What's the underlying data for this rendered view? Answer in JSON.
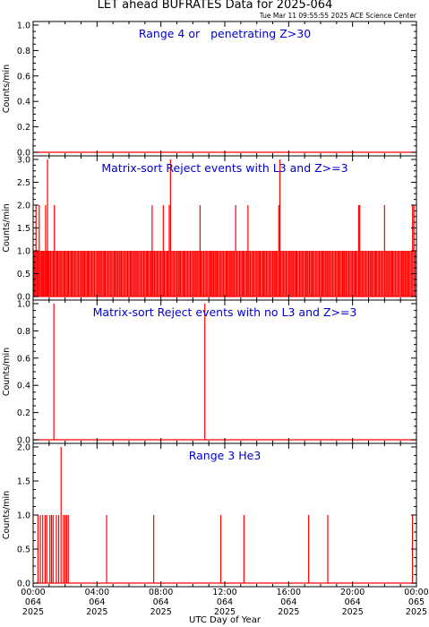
{
  "figure": {
    "title": "LET ahead BUFRATES Data for 2025-064",
    "timestamp": "Tue Mar 11 09:55:55 2025 ACE Science Center",
    "xlabel": "UTC Day of Year",
    "x_ticks": [
      {
        "hour": 0,
        "time": "00:00",
        "doy": "064",
        "year": "2025"
      },
      {
        "hour": 4,
        "time": "04:00",
        "doy": "064",
        "year": "2025"
      },
      {
        "hour": 8,
        "time": "08:00",
        "doy": "064",
        "year": "2025"
      },
      {
        "hour": 12,
        "time": "12:00",
        "doy": "064",
        "year": "2025"
      },
      {
        "hour": 16,
        "time": "16:00",
        "doy": "064",
        "year": "2025"
      },
      {
        "hour": 20,
        "time": "20:00",
        "doy": "064",
        "year": "2025"
      },
      {
        "hour": 24,
        "time": "00:00",
        "doy": "065",
        "year": "2025"
      }
    ],
    "colors": {
      "data": "#ff0000",
      "panel_label": "#0000cc",
      "axes": "#000000"
    }
  },
  "chart_data": [
    {
      "type": "line",
      "title": "Range 4 or   penetrating Z>30",
      "ylabel": "Counts/min",
      "ylim": [
        0,
        1.0
      ],
      "y_ticks": [
        "0.0",
        "0.2",
        "0.4",
        "0.6",
        "0.8",
        "1.0"
      ],
      "xlim_hours": [
        0,
        24
      ],
      "values_default": 0,
      "events": []
    },
    {
      "type": "line",
      "title": "Matrix-sort Reject events with L3 and Z>=3",
      "ylabel": "Counts/min",
      "ylim": [
        0,
        3.0
      ],
      "y_ticks": [
        "0.0",
        "0.5",
        "1.0",
        "1.5",
        "2.0",
        "2.5",
        "3.0"
      ],
      "xlim_hours": [
        0,
        24
      ],
      "values_default": 0,
      "events": [
        [
          0.05,
          1
        ],
        [
          0.12,
          1
        ],
        [
          0.18,
          2
        ],
        [
          0.25,
          1
        ],
        [
          0.32,
          1
        ],
        [
          0.38,
          2
        ],
        [
          0.45,
          1
        ],
        [
          0.52,
          1
        ],
        [
          0.58,
          1
        ],
        [
          0.65,
          1
        ],
        [
          0.72,
          1
        ],
        [
          0.78,
          2
        ],
        [
          0.85,
          1
        ],
        [
          0.9,
          3
        ],
        [
          0.96,
          1
        ],
        [
          1.02,
          1
        ],
        [
          1.1,
          1
        ],
        [
          1.18,
          1
        ],
        [
          1.26,
          1
        ],
        [
          1.33,
          2
        ],
        [
          1.4,
          1
        ],
        [
          1.48,
          1
        ],
        [
          1.55,
          1
        ],
        [
          1.63,
          1
        ],
        [
          1.7,
          1
        ],
        [
          1.78,
          1
        ],
        [
          1.85,
          1
        ],
        [
          1.93,
          1
        ],
        [
          2.0,
          1
        ],
        [
          2.08,
          1
        ],
        [
          2.15,
          1
        ],
        [
          2.22,
          1
        ],
        [
          2.3,
          1
        ],
        [
          2.38,
          1
        ],
        [
          2.45,
          1
        ],
        [
          2.52,
          1
        ],
        [
          2.6,
          1
        ],
        [
          2.68,
          1
        ],
        [
          2.76,
          1
        ],
        [
          2.84,
          1
        ],
        [
          2.92,
          1
        ],
        [
          3.0,
          1
        ],
        [
          3.08,
          1
        ],
        [
          3.15,
          1
        ],
        [
          3.22,
          1
        ],
        [
          3.3,
          1
        ],
        [
          3.38,
          1
        ],
        [
          3.45,
          1
        ],
        [
          3.52,
          1
        ],
        [
          3.6,
          1
        ],
        [
          3.68,
          1
        ],
        [
          3.76,
          1
        ],
        [
          3.84,
          1
        ],
        [
          3.92,
          1
        ],
        [
          4.0,
          1
        ],
        [
          4.08,
          1
        ],
        [
          4.15,
          1
        ],
        [
          4.22,
          1
        ],
        [
          4.3,
          1
        ],
        [
          4.38,
          1
        ],
        [
          4.45,
          1
        ],
        [
          4.52,
          1
        ],
        [
          4.6,
          1
        ],
        [
          4.68,
          1
        ],
        [
          4.76,
          1
        ],
        [
          4.84,
          1
        ],
        [
          4.92,
          1
        ],
        [
          5.0,
          1
        ],
        [
          5.08,
          1
        ],
        [
          5.15,
          1
        ],
        [
          5.22,
          1
        ],
        [
          5.3,
          1
        ],
        [
          5.38,
          1
        ],
        [
          5.45,
          1
        ],
        [
          5.52,
          1
        ],
        [
          5.6,
          1
        ],
        [
          5.68,
          1
        ],
        [
          5.76,
          1
        ],
        [
          5.84,
          1
        ],
        [
          5.92,
          1
        ],
        [
          6.0,
          1
        ],
        [
          6.08,
          1
        ],
        [
          6.15,
          1
        ],
        [
          6.22,
          1
        ],
        [
          6.3,
          1
        ],
        [
          6.38,
          1
        ],
        [
          6.45,
          1
        ],
        [
          6.52,
          1
        ],
        [
          6.6,
          1
        ],
        [
          6.68,
          1
        ],
        [
          6.76,
          1
        ],
        [
          6.84,
          1
        ],
        [
          6.92,
          1
        ],
        [
          7.0,
          1
        ],
        [
          7.08,
          1
        ],
        [
          7.15,
          1
        ],
        [
          7.22,
          1
        ],
        [
          7.3,
          1
        ],
        [
          7.38,
          1
        ],
        [
          7.45,
          2
        ],
        [
          7.52,
          1
        ],
        [
          7.6,
          1
        ],
        [
          7.68,
          1
        ],
        [
          7.76,
          1
        ],
        [
          7.84,
          1
        ],
        [
          7.92,
          1
        ],
        [
          8.0,
          1
        ],
        [
          8.08,
          1
        ],
        [
          8.15,
          2
        ],
        [
          8.22,
          1
        ],
        [
          8.3,
          1
        ],
        [
          8.38,
          1
        ],
        [
          8.45,
          1
        ],
        [
          8.52,
          2
        ],
        [
          8.6,
          3
        ],
        [
          8.68,
          1
        ],
        [
          8.76,
          1
        ],
        [
          8.84,
          1
        ],
        [
          8.92,
          1
        ],
        [
          9.0,
          1
        ],
        [
          9.08,
          1
        ],
        [
          9.15,
          1
        ],
        [
          9.22,
          1
        ],
        [
          9.3,
          1
        ],
        [
          9.38,
          1
        ],
        [
          9.45,
          1
        ],
        [
          9.52,
          1
        ],
        [
          9.6,
          1
        ],
        [
          9.68,
          1
        ],
        [
          9.76,
          1
        ],
        [
          9.84,
          1
        ],
        [
          9.92,
          1
        ],
        [
          10.0,
          1
        ],
        [
          10.08,
          1
        ],
        [
          10.15,
          1
        ],
        [
          10.22,
          1
        ],
        [
          10.3,
          1
        ],
        [
          10.38,
          1
        ],
        [
          10.45,
          2
        ],
        [
          10.52,
          1
        ],
        [
          10.6,
          1
        ],
        [
          10.68,
          1
        ],
        [
          10.76,
          1
        ],
        [
          10.84,
          1
        ],
        [
          10.92,
          1
        ],
        [
          11.0,
          1
        ],
        [
          11.08,
          1
        ],
        [
          11.15,
          1
        ],
        [
          11.22,
          1
        ],
        [
          11.3,
          1
        ],
        [
          11.38,
          1
        ],
        [
          11.45,
          1
        ],
        [
          11.52,
          1
        ],
        [
          11.6,
          1
        ],
        [
          11.68,
          1
        ],
        [
          11.76,
          1
        ],
        [
          11.84,
          1
        ],
        [
          11.92,
          1
        ],
        [
          12.0,
          1
        ],
        [
          12.08,
          1
        ],
        [
          12.15,
          1
        ],
        [
          12.22,
          1
        ],
        [
          12.3,
          1
        ],
        [
          12.38,
          1
        ],
        [
          12.45,
          1
        ],
        [
          12.52,
          1
        ],
        [
          12.6,
          1
        ],
        [
          12.68,
          2
        ],
        [
          12.76,
          1
        ],
        [
          12.84,
          1
        ],
        [
          12.92,
          1
        ],
        [
          13.0,
          1
        ],
        [
          13.08,
          1
        ],
        [
          13.15,
          1
        ],
        [
          13.22,
          1
        ],
        [
          13.3,
          1
        ],
        [
          13.38,
          1
        ],
        [
          13.45,
          2
        ],
        [
          13.52,
          1
        ],
        [
          13.6,
          1
        ],
        [
          13.68,
          1
        ],
        [
          13.76,
          1
        ],
        [
          13.84,
          1
        ],
        [
          13.92,
          1
        ],
        [
          14.0,
          1
        ],
        [
          14.08,
          1
        ],
        [
          14.15,
          1
        ],
        [
          14.22,
          1
        ],
        [
          14.3,
          1
        ],
        [
          14.38,
          1
        ],
        [
          14.45,
          1
        ],
        [
          14.52,
          1
        ],
        [
          14.6,
          1
        ],
        [
          14.68,
          1
        ],
        [
          14.76,
          1
        ],
        [
          14.84,
          1
        ],
        [
          14.92,
          1
        ],
        [
          15.0,
          1
        ],
        [
          15.08,
          1
        ],
        [
          15.15,
          1
        ],
        [
          15.22,
          1
        ],
        [
          15.3,
          1
        ],
        [
          15.38,
          2
        ],
        [
          15.45,
          3
        ],
        [
          15.52,
          1
        ],
        [
          15.6,
          1
        ],
        [
          15.68,
          1
        ],
        [
          15.76,
          1
        ],
        [
          15.84,
          1
        ],
        [
          15.92,
          1
        ],
        [
          16.0,
          1
        ],
        [
          16.08,
          1
        ],
        [
          16.15,
          1
        ],
        [
          16.22,
          1
        ],
        [
          16.3,
          1
        ],
        [
          16.38,
          1
        ],
        [
          16.45,
          1
        ],
        [
          16.52,
          1
        ],
        [
          16.6,
          1
        ],
        [
          16.68,
          1
        ],
        [
          16.76,
          1
        ],
        [
          16.84,
          1
        ],
        [
          16.92,
          1
        ],
        [
          17.0,
          1
        ],
        [
          17.08,
          1
        ],
        [
          17.15,
          1
        ],
        [
          17.22,
          1
        ],
        [
          17.3,
          1
        ],
        [
          17.38,
          1
        ],
        [
          17.45,
          1
        ],
        [
          17.52,
          1
        ],
        [
          17.6,
          1
        ],
        [
          17.68,
          1
        ],
        [
          17.76,
          1
        ],
        [
          17.84,
          1
        ],
        [
          17.92,
          1
        ],
        [
          18.0,
          1
        ],
        [
          18.08,
          1
        ],
        [
          18.15,
          1
        ],
        [
          18.22,
          1
        ],
        [
          18.3,
          1
        ],
        [
          18.38,
          1
        ],
        [
          18.45,
          1
        ],
        [
          18.52,
          1
        ],
        [
          18.6,
          1
        ],
        [
          18.68,
          1
        ],
        [
          18.76,
          1
        ],
        [
          18.84,
          1
        ],
        [
          18.92,
          1
        ],
        [
          19.0,
          1
        ],
        [
          19.08,
          1
        ],
        [
          19.15,
          1
        ],
        [
          19.22,
          1
        ],
        [
          19.3,
          1
        ],
        [
          19.38,
          1
        ],
        [
          19.45,
          1
        ],
        [
          19.52,
          1
        ],
        [
          19.6,
          1
        ],
        [
          19.68,
          1
        ],
        [
          19.76,
          1
        ],
        [
          19.84,
          1
        ],
        [
          19.92,
          1
        ],
        [
          20.0,
          1
        ],
        [
          20.08,
          1
        ],
        [
          20.15,
          1
        ],
        [
          20.22,
          1
        ],
        [
          20.3,
          1
        ],
        [
          20.38,
          2
        ],
        [
          20.45,
          2
        ],
        [
          20.52,
          1
        ],
        [
          20.6,
          1
        ],
        [
          20.68,
          1
        ],
        [
          20.76,
          1
        ],
        [
          20.84,
          1
        ],
        [
          20.92,
          1
        ],
        [
          21.0,
          1
        ],
        [
          21.08,
          1
        ],
        [
          21.15,
          1
        ],
        [
          21.22,
          1
        ],
        [
          21.3,
          1
        ],
        [
          21.38,
          1
        ],
        [
          21.45,
          1
        ],
        [
          21.52,
          1
        ],
        [
          21.6,
          1
        ],
        [
          21.68,
          1
        ],
        [
          21.76,
          1
        ],
        [
          21.84,
          1
        ],
        [
          21.92,
          1
        ],
        [
          22.0,
          2
        ],
        [
          22.08,
          1
        ],
        [
          22.15,
          1
        ],
        [
          22.22,
          1
        ],
        [
          22.3,
          1
        ],
        [
          22.38,
          1
        ],
        [
          22.45,
          1
        ],
        [
          22.52,
          1
        ],
        [
          22.6,
          1
        ],
        [
          22.68,
          1
        ],
        [
          22.76,
          1
        ],
        [
          22.84,
          1
        ],
        [
          22.92,
          1
        ],
        [
          23.0,
          1
        ],
        [
          23.08,
          1
        ],
        [
          23.15,
          1
        ],
        [
          23.22,
          1
        ],
        [
          23.3,
          1
        ],
        [
          23.38,
          1
        ],
        [
          23.45,
          1
        ],
        [
          23.52,
          1
        ],
        [
          23.6,
          1
        ],
        [
          23.68,
          1
        ],
        [
          23.76,
          2
        ],
        [
          23.84,
          2
        ],
        [
          23.92,
          1
        ]
      ]
    },
    {
      "type": "line",
      "title": "Matrix-sort Reject events with no L3 and Z>=3",
      "ylabel": "Counts/min",
      "ylim": [
        0,
        1.0
      ],
      "y_ticks": [
        "0.0",
        "0.2",
        "0.4",
        "0.6",
        "0.8",
        "1.0"
      ],
      "xlim_hours": [
        0,
        24
      ],
      "values_default": 0,
      "events": [
        [
          1.3,
          1
        ],
        [
          10.75,
          1
        ]
      ]
    },
    {
      "type": "line",
      "title": "Range 3 He3",
      "ylabel": "Counts/min",
      "ylim": [
        0,
        2.0
      ],
      "y_ticks": [
        "0.0",
        "0.5",
        "1.0",
        "1.5",
        "2.0"
      ],
      "xlim_hours": [
        0,
        24
      ],
      "values_default": 0,
      "events": [
        [
          0.3,
          1
        ],
        [
          0.45,
          1
        ],
        [
          0.6,
          1
        ],
        [
          0.75,
          1
        ],
        [
          0.85,
          1
        ],
        [
          1.05,
          1
        ],
        [
          1.15,
          1
        ],
        [
          1.25,
          1
        ],
        [
          1.45,
          1
        ],
        [
          1.6,
          1
        ],
        [
          1.75,
          2
        ],
        [
          1.9,
          1
        ],
        [
          2.0,
          1
        ],
        [
          2.1,
          1
        ],
        [
          2.2,
          1
        ],
        [
          4.6,
          1
        ],
        [
          7.55,
          1
        ],
        [
          11.75,
          1
        ],
        [
          13.2,
          1
        ],
        [
          17.25,
          1
        ],
        [
          18.45,
          1
        ],
        [
          23.75,
          1
        ]
      ]
    }
  ]
}
